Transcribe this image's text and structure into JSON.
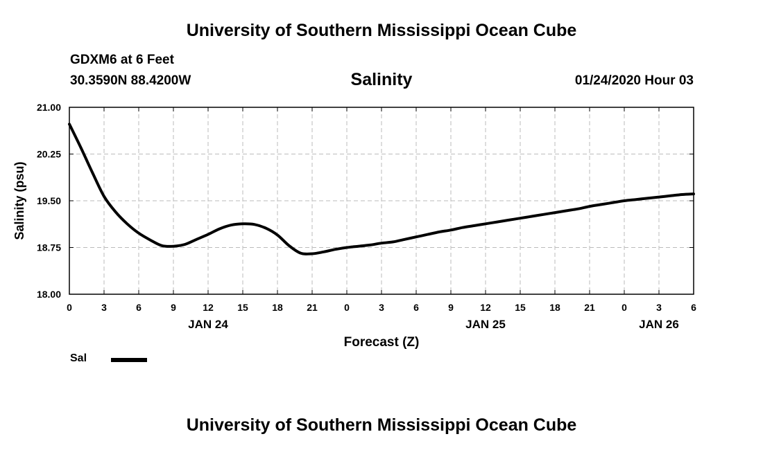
{
  "header": {
    "title": "University of Southern Mississippi Ocean Cube",
    "station": "GDXM6 at 6 Feet",
    "coords": "30.3590N 88.4200W",
    "variable": "Salinity",
    "datetime": "01/24/2020 Hour 03"
  },
  "footer": {
    "title": "University of Southern Mississippi Ocean Cube"
  },
  "colors": {
    "line": "#000000",
    "grid": "#bbbbbb",
    "axis": "#000000"
  },
  "chart_data": {
    "type": "line",
    "title": "Salinity",
    "xlabel": "Forecast (Z)",
    "ylabel": "Salinity (psu)",
    "xlim": [
      0,
      54
    ],
    "ylim": [
      18.0,
      21.0
    ],
    "grid": true,
    "x_ticks": [
      {
        "x": 0,
        "label": "0"
      },
      {
        "x": 3,
        "label": "3"
      },
      {
        "x": 6,
        "label": "6"
      },
      {
        "x": 9,
        "label": "9"
      },
      {
        "x": 12,
        "label": "12"
      },
      {
        "x": 15,
        "label": "15"
      },
      {
        "x": 18,
        "label": "18"
      },
      {
        "x": 21,
        "label": "21"
      },
      {
        "x": 24,
        "label": "0"
      },
      {
        "x": 27,
        "label": "3"
      },
      {
        "x": 30,
        "label": "6"
      },
      {
        "x": 33,
        "label": "9"
      },
      {
        "x": 36,
        "label": "12"
      },
      {
        "x": 39,
        "label": "15"
      },
      {
        "x": 42,
        "label": "18"
      },
      {
        "x": 45,
        "label": "21"
      },
      {
        "x": 48,
        "label": "0"
      },
      {
        "x": 51,
        "label": "3"
      },
      {
        "x": 54,
        "label": "6"
      }
    ],
    "y_ticks": [
      {
        "y": 18.0,
        "label": "18.00"
      },
      {
        "y": 18.75,
        "label": "18.75"
      },
      {
        "y": 19.5,
        "label": "19.50"
      },
      {
        "y": 20.25,
        "label": "20.25"
      },
      {
        "y": 21.0,
        "label": "21.00"
      }
    ],
    "date_labels": [
      {
        "x": 12,
        "label": "JAN 24"
      },
      {
        "x": 36,
        "label": "JAN 25"
      },
      {
        "x": 51,
        "label": "JAN 26"
      }
    ],
    "series": [
      {
        "name": "Sal",
        "x": [
          0,
          1,
          2,
          3,
          4,
          5,
          6,
          7,
          8,
          9,
          10,
          11,
          12,
          13,
          14,
          15,
          16,
          17,
          18,
          19,
          20,
          21,
          22,
          23,
          24,
          25,
          26,
          27,
          28,
          29,
          30,
          31,
          32,
          33,
          34,
          35,
          36,
          37,
          38,
          39,
          40,
          41,
          42,
          43,
          44,
          45,
          46,
          47,
          48,
          49,
          50,
          51,
          52,
          53,
          54
        ],
        "values": [
          20.73,
          20.35,
          19.95,
          19.57,
          19.32,
          19.13,
          18.98,
          18.87,
          18.78,
          18.77,
          18.8,
          18.88,
          18.96,
          19.05,
          19.11,
          19.13,
          19.12,
          19.06,
          18.95,
          18.78,
          18.66,
          18.65,
          18.68,
          18.72,
          18.75,
          18.77,
          18.79,
          18.82,
          18.84,
          18.88,
          18.92,
          18.96,
          19.0,
          19.03,
          19.07,
          19.1,
          19.13,
          19.16,
          19.19,
          19.22,
          19.25,
          19.28,
          19.31,
          19.34,
          19.37,
          19.41,
          19.44,
          19.47,
          19.5,
          19.52,
          19.54,
          19.56,
          19.58,
          19.6,
          19.61
        ]
      }
    ]
  },
  "legend": {
    "label": "Sal"
  }
}
